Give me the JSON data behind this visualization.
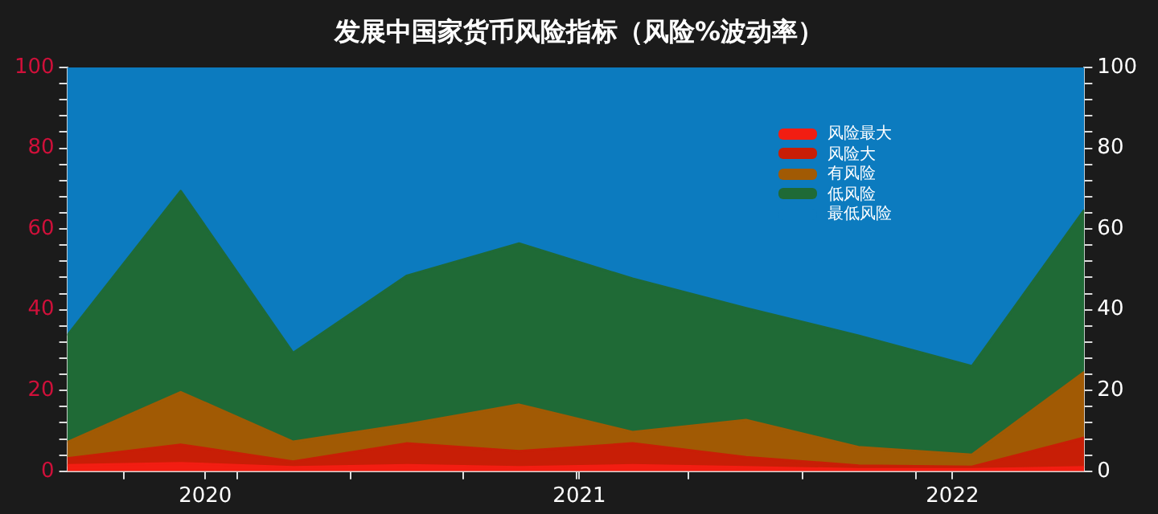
{
  "chart_data": {
    "type": "area",
    "title": "发展中国家货币风险指标（风险%波动率）",
    "stacked": true,
    "x": [
      "2019-08-19",
      "2019-12-08",
      "2020-03-27",
      "2020-07-16",
      "2020-11-03",
      "2021-02-22",
      "2021-06-13",
      "2021-10-01",
      "2022-01-20",
      "2022-05-10"
    ],
    "xlim": [
      "2019-08-19",
      "2022-05-10"
    ],
    "xticks": [
      {
        "value": "2019-10-13",
        "label": null
      },
      "2020",
      {
        "value": "2020-02-01",
        "label": null
      },
      {
        "value": "2020-05-22",
        "label": null
      },
      {
        "value": "2020-09-09",
        "label": null
      },
      {
        "value": "2020-12-29",
        "label": null
      },
      "2021",
      {
        "value": "2021-04-18",
        "label": null
      },
      {
        "value": "2021-08-07",
        "label": null
      },
      {
        "value": "2021-11-26",
        "label": null
      },
      "2022"
    ],
    "ylim": [
      0,
      100
    ],
    "yticks": [
      0,
      {
        "value": 4,
        "label": null
      },
      {
        "value": 8,
        "label": null
      },
      {
        "value": 12,
        "label": null
      },
      {
        "value": 16,
        "label": null
      },
      20,
      {
        "value": 24,
        "label": null
      },
      {
        "value": 28,
        "label": null
      },
      {
        "value": 32,
        "label": null
      },
      {
        "value": 36,
        "label": null
      },
      40,
      {
        "value": 44,
        "label": null
      },
      {
        "value": 48,
        "label": null
      },
      {
        "value": 52,
        "label": null
      },
      {
        "value": 56,
        "label": null
      },
      60,
      {
        "value": 64,
        "label": null
      },
      {
        "value": 68,
        "label": null
      },
      {
        "value": 72,
        "label": null
      },
      {
        "value": 76,
        "label": null
      },
      80,
      {
        "value": 84,
        "label": null
      },
      {
        "value": 88,
        "label": null
      },
      {
        "value": 92,
        "label": null
      },
      {
        "value": 96,
        "label": null
      },
      100
    ],
    "y2lim": [
      0,
      100
    ],
    "y2ticks": [
      0,
      {
        "value": 4,
        "label": null
      },
      {
        "value": 8,
        "label": null
      },
      {
        "value": 12,
        "label": null
      },
      {
        "value": 16,
        "label": null
      },
      20,
      {
        "value": 24,
        "label": null
      },
      {
        "value": 28,
        "label": null
      },
      {
        "value": 32,
        "label": null
      },
      {
        "value": 36,
        "label": null
      },
      40,
      {
        "value": 44,
        "label": null
      },
      {
        "value": 48,
        "label": null
      },
      {
        "value": 52,
        "label": null
      },
      {
        "value": 56,
        "label": null
      },
      60,
      {
        "value": 64,
        "label": null
      },
      {
        "value": 68,
        "label": null
      },
      {
        "value": 72,
        "label": null
      },
      {
        "value": 76,
        "label": null
      },
      80,
      {
        "value": 84,
        "label": null
      },
      {
        "value": 88,
        "label": null
      },
      {
        "value": 92,
        "label": null
      },
      {
        "value": 96,
        "label": null
      },
      100
    ],
    "grid": false,
    "legend": "top right",
    "series": [
      {
        "name": "风险最大",
        "color": "#f21d12",
        "values": [
          1.5,
          2,
          1,
          1.5,
          1,
          1.5,
          1,
          0.5,
          0.5,
          1
        ]
      },
      {
        "name": "风险大",
        "color": "#c81e06",
        "values": [
          1.7,
          4.6,
          1.4,
          5.4,
          4,
          5.4,
          2.5,
          0.9,
          0.6,
          7.3
        ]
      },
      {
        "name": "有风险",
        "color": "#a15a04",
        "values": [
          4,
          13,
          4.9,
          4.7,
          11.5,
          2.8,
          9.2,
          4.6,
          3,
          16.3
        ]
      },
      {
        "name": "低风险",
        "color": "#1f6a36",
        "values": [
          26.4,
          49.8,
          22,
          36.8,
          39.9,
          38,
          27.7,
          27.6,
          21.9,
          40.1
        ]
      },
      {
        "name": "最低风险",
        "color": "#0c7bbf",
        "values": [
          66.4,
          30.6,
          70.7,
          51.6,
          43.6,
          52.3,
          59.6,
          66.4,
          74,
          35.3
        ]
      }
    ]
  }
}
